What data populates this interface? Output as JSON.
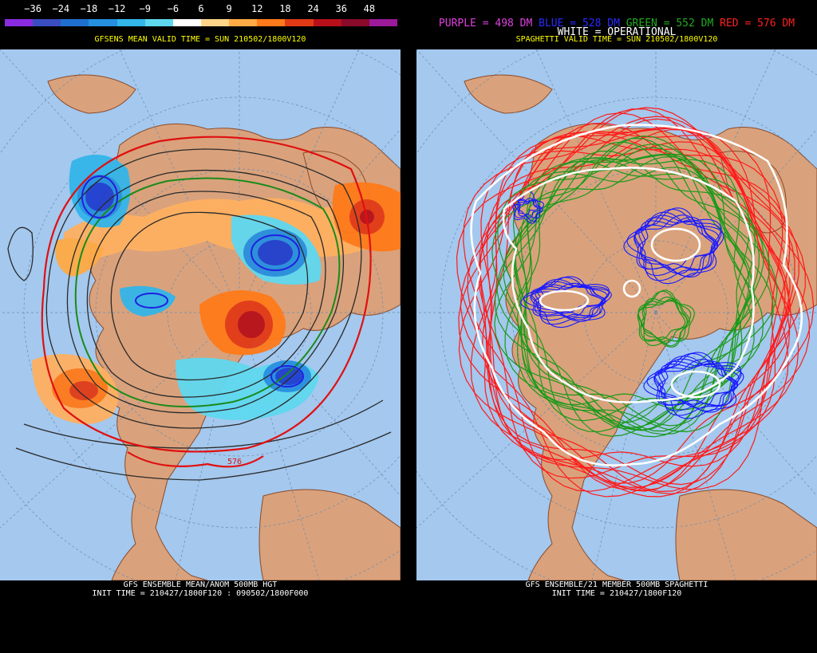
{
  "left": {
    "legend": {
      "labels": [
        "−36",
        "−24",
        "−18",
        "−12",
        "−9",
        "−6",
        "6",
        "9",
        "12",
        "18",
        "24",
        "36",
        "48"
      ],
      "colors": [
        "#8a2be2",
        "#3a4ec0",
        "#1f6fd0",
        "#2590e0",
        "#33b6ea",
        "#5fd8ef",
        "#ffffff",
        "#ffd58a",
        "#ffaa44",
        "#ff7a1a",
        "#e23a16",
        "#b8101a",
        "#8a0a2a",
        "#9a1a9a"
      ]
    },
    "subtitle": "GFSENS MEAN VALID TIME = SUN 210502/1800V120",
    "caption_line1": "GFS ENSEMBLE MEAN/ANOM 500MB HGT",
    "caption_line2": "INIT TIME = 210427/1800F120 : 090502/1800F000",
    "contour_label": "576"
  },
  "right": {
    "key": [
      {
        "text": "PURPLE = 498 DM",
        "color": "#e040e0"
      },
      {
        "text": "BLUE = 528 DM",
        "color": "#2a2aff"
      },
      {
        "text": "GREEN = 552 DM",
        "color": "#22aa22"
      },
      {
        "text": "RED = 576 DM",
        "color": "#ff2020"
      }
    ],
    "key_white": "WHITE = OPERATIONAL",
    "subtitle": "SPAGHETTI VALID TIME = SUN 210502/1800V120",
    "caption_line1": "GFS ENSEMBLE/21 MEMBER 500MB SPAGHETTI",
    "caption_line2": "INIT TIME = 210427/1800F120"
  }
}
